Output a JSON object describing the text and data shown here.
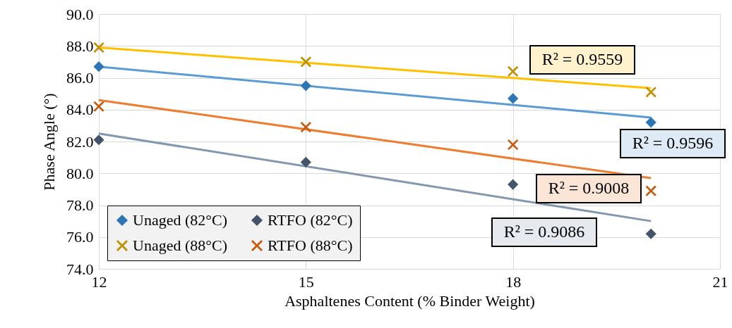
{
  "chart_data": {
    "type": "scatter",
    "xlabel": "Asphaltenes Content (% Binder Weight)",
    "ylabel": "Phase Angle (°)",
    "xlim": [
      12,
      21
    ],
    "xticks": [
      12,
      15,
      18,
      21
    ],
    "ylim": [
      74,
      90
    ],
    "yticks": [
      {
        "value": 74,
        "label": "74.0"
      },
      {
        "value": 76,
        "label": "76.0"
      },
      {
        "value": 78,
        "label": "78.0"
      },
      {
        "value": 80,
        "label": "80.0"
      },
      {
        "value": 82,
        "label": "82.0"
      },
      {
        "value": 84,
        "label": "84.0"
      },
      {
        "value": 86,
        "label": "86.0"
      },
      {
        "value": 88,
        "label": "88.0"
      },
      {
        "value": 90,
        "label": "90.0"
      }
    ],
    "grid": true,
    "legend": "bottom left",
    "series": [
      {
        "name": "Unaged (82°C)",
        "marker": "diamond",
        "color": "#2e75b6",
        "x": [
          12,
          15,
          18,
          20
        ],
        "values": [
          86.7,
          85.5,
          84.7,
          83.2
        ]
      },
      {
        "name": "Unaged (88°C)",
        "marker": "cross",
        "color": "#bf9000",
        "x": [
          12,
          15,
          18,
          20
        ],
        "values": [
          87.9,
          87.0,
          86.4,
          85.1
        ]
      },
      {
        "name": "RTFO (82°C)",
        "marker": "diamond",
        "color": "#44546a",
        "x": [
          12,
          15,
          18,
          20
        ],
        "values": [
          82.1,
          80.7,
          79.3,
          76.2
        ]
      },
      {
        "name": "RTFO (88°C)",
        "marker": "cross",
        "color": "#c55a11",
        "x": [
          12,
          15,
          18,
          20
        ],
        "values": [
          84.2,
          82.9,
          81.8,
          78.9
        ]
      },
      {
        "type": "line",
        "color": "#ffc000",
        "x": [
          12,
          20
        ],
        "values": [
          87.9,
          85.35
        ]
      },
      {
        "type": "line",
        "color": "#5b9bd5",
        "x": [
          12,
          20
        ],
        "values": [
          86.7,
          83.5
        ]
      },
      {
        "type": "line",
        "color": "#ed7d31",
        "x": [
          12,
          20
        ],
        "values": [
          84.6,
          79.7
        ]
      },
      {
        "type": "line",
        "color": "#8497b0",
        "x": [
          12,
          20
        ],
        "values": [
          82.5,
          77.0
        ]
      }
    ],
    "annotations": [
      "R² = 0.9559",
      "R² = 0.9596",
      "R² = 0.9008",
      "R² = 0.9086"
    ]
  }
}
